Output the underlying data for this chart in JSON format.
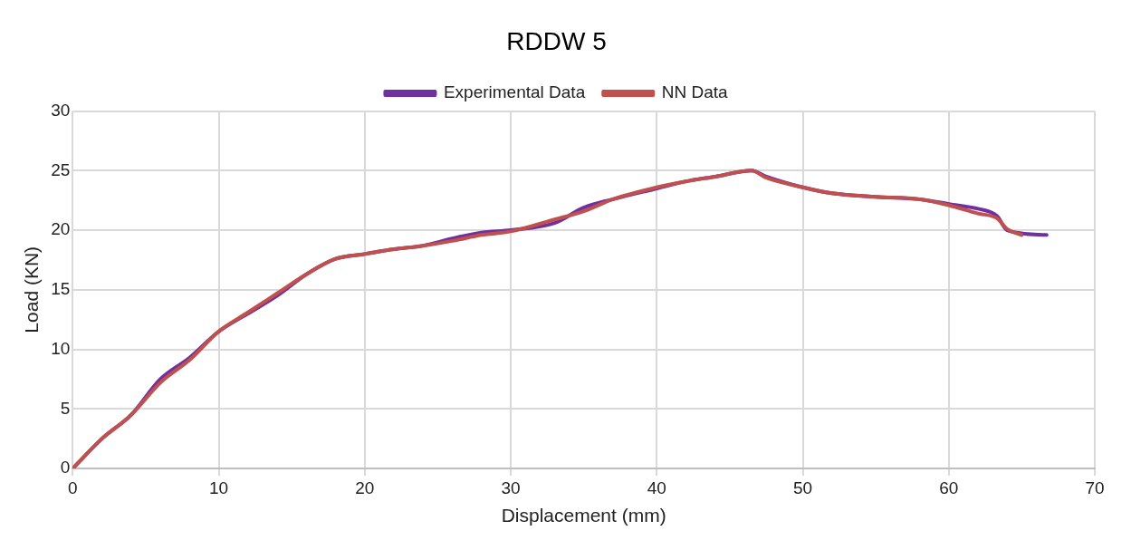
{
  "chart_data": {
    "type": "line",
    "title": "RDDW 5",
    "xlabel": "Displacement (mm)",
    "ylabel": "Load (KN)",
    "xlim": [
      0,
      70
    ],
    "xticks": [
      0,
      10,
      20,
      30,
      40,
      50,
      60,
      70
    ],
    "ylim": [
      0,
      30
    ],
    "yticks": [
      0,
      5,
      10,
      15,
      20,
      25,
      30
    ],
    "grid": true,
    "legend": "top",
    "marker": "none",
    "series": [
      {
        "name": "Experimental Data",
        "color": "#7030a0",
        "x": [
          0,
          2,
          4,
          6,
          8,
          10,
          12,
          14,
          16,
          18,
          20,
          22,
          24,
          26,
          28,
          30,
          33,
          35,
          37,
          40,
          42,
          44,
          46.5,
          47.5,
          50,
          52,
          55,
          58,
          60,
          62,
          63.3,
          64,
          66.7
        ],
        "values": [
          0,
          2.5,
          4.5,
          7.5,
          9.3,
          11.5,
          13,
          14.5,
          16.3,
          17.6,
          18,
          18.4,
          18.7,
          19.3,
          19.8,
          20,
          20.6,
          21.9,
          22.6,
          23.5,
          24.1,
          24.5,
          25,
          24.5,
          23.6,
          23.1,
          22.8,
          22.6,
          22.2,
          21.8,
          21.2,
          20,
          19.6
        ]
      },
      {
        "name": "NN Data",
        "color": "#c0504d",
        "x": [
          0,
          2,
          4,
          6,
          8,
          10,
          12,
          14,
          16,
          18,
          20,
          22,
          24,
          26,
          28,
          30,
          33,
          35,
          37,
          40,
          42,
          44,
          46.5,
          47.5,
          50,
          52,
          55,
          58,
          60,
          62,
          63.3,
          64,
          65
        ],
        "values": [
          0,
          2.5,
          4.5,
          7.2,
          9.1,
          11.5,
          13.1,
          14.7,
          16.3,
          17.6,
          18,
          18.4,
          18.7,
          19.1,
          19.6,
          19.9,
          20.9,
          21.6,
          22.6,
          23.6,
          24.1,
          24.5,
          25,
          24.4,
          23.6,
          23.1,
          22.8,
          22.6,
          22.1,
          21.4,
          21,
          20.1,
          19.6
        ]
      }
    ]
  }
}
